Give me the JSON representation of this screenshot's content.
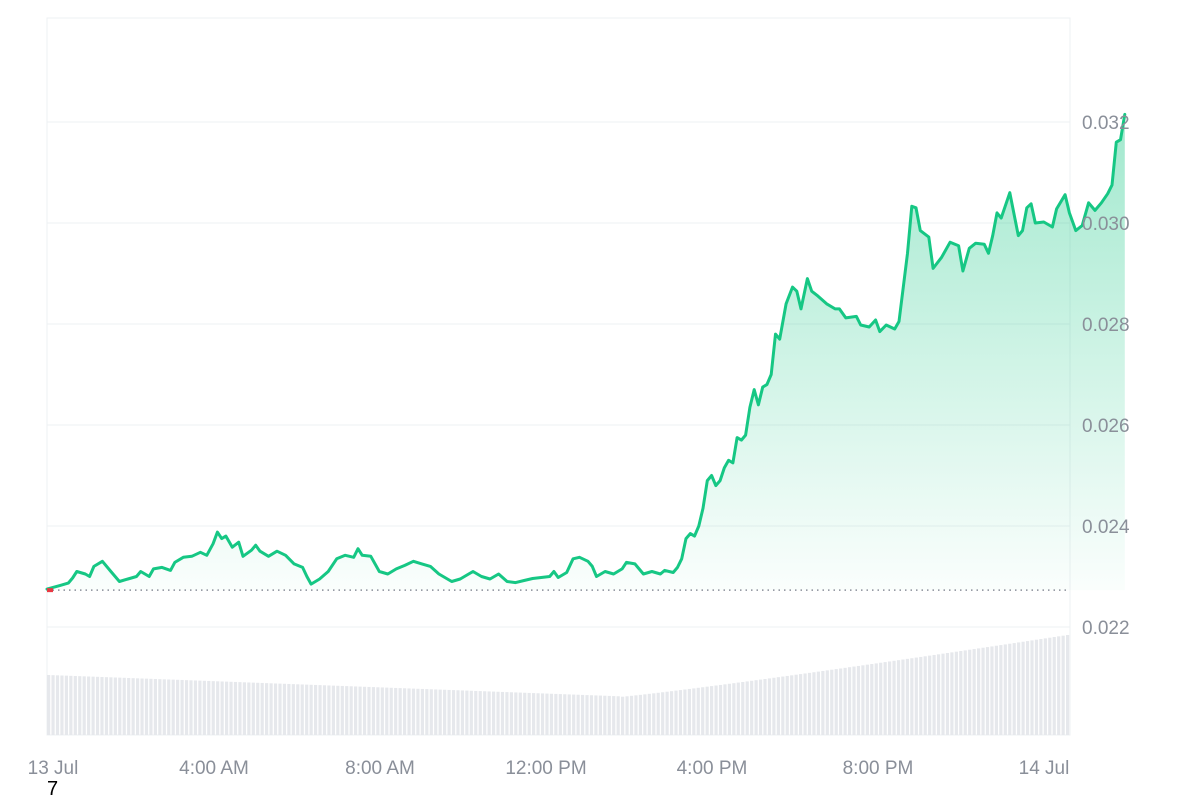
{
  "colors": {
    "line": "#16c784",
    "fill": "#16c784",
    "grid": "#eef0f3",
    "baseline": "#8a8f99",
    "volume": "#e6e8ec",
    "axis_text": "#8a8f99",
    "start_dot": "#ea3943"
  },
  "stray_label": "7",
  "chart_data": {
    "type": "area",
    "x_unit": "hours since 13 Jul 00:00",
    "y_ticks": [
      0.022,
      0.024,
      0.026,
      0.028,
      0.03,
      0.032
    ],
    "y_tick_labels": [
      "0.022",
      "0.024",
      "0.026",
      "0.028",
      "0.030",
      "0.032"
    ],
    "x_ticks": [
      0,
      4,
      8,
      12,
      16,
      20,
      24
    ],
    "x_tick_labels": [
      "13 Jul",
      "4:00 AM",
      "8:00 AM",
      "12:00 PM",
      "4:00 PM",
      "8:00 PM",
      "14 Jul"
    ],
    "ylim": [
      0.0198,
      0.034
    ],
    "xlim": [
      0,
      24
    ],
    "baseline_value": 0.02273,
    "grid": true,
    "series": [
      {
        "values": [
          [
            0.0,
            0.02275
          ],
          [
            0.3,
            0.02282
          ],
          [
            0.5,
            0.02287
          ],
          [
            0.6,
            0.02297
          ],
          [
            0.7,
            0.0231
          ],
          [
            0.9,
            0.02305
          ],
          [
            1.0,
            0.023
          ],
          [
            1.1,
            0.0232
          ],
          [
            1.3,
            0.0233
          ],
          [
            1.5,
            0.0231
          ],
          [
            1.7,
            0.0229
          ],
          [
            1.9,
            0.02295
          ],
          [
            2.1,
            0.023
          ],
          [
            2.2,
            0.0231
          ],
          [
            2.4,
            0.023
          ],
          [
            2.5,
            0.02315
          ],
          [
            2.7,
            0.02318
          ],
          [
            2.9,
            0.02312
          ],
          [
            3.0,
            0.02328
          ],
          [
            3.2,
            0.02338
          ],
          [
            3.4,
            0.0234
          ],
          [
            3.6,
            0.02348
          ],
          [
            3.75,
            0.02342
          ],
          [
            3.9,
            0.02365
          ],
          [
            4.0,
            0.02388
          ],
          [
            4.1,
            0.02375
          ],
          [
            4.2,
            0.0238
          ],
          [
            4.35,
            0.02358
          ],
          [
            4.5,
            0.02368
          ],
          [
            4.6,
            0.0234
          ],
          [
            4.8,
            0.02352
          ],
          [
            4.9,
            0.02362
          ],
          [
            5.0,
            0.0235
          ],
          [
            5.2,
            0.0234
          ],
          [
            5.4,
            0.0235
          ],
          [
            5.6,
            0.02342
          ],
          [
            5.8,
            0.02325
          ],
          [
            6.0,
            0.02318
          ],
          [
            6.1,
            0.023
          ],
          [
            6.2,
            0.02285
          ],
          [
            6.4,
            0.02295
          ],
          [
            6.6,
            0.0231
          ],
          [
            6.8,
            0.02335
          ],
          [
            7.0,
            0.02342
          ],
          [
            7.2,
            0.02338
          ],
          [
            7.3,
            0.02355
          ],
          [
            7.4,
            0.02342
          ],
          [
            7.6,
            0.0234
          ],
          [
            7.8,
            0.0231
          ],
          [
            8.0,
            0.02305
          ],
          [
            8.2,
            0.02315
          ],
          [
            8.4,
            0.02322
          ],
          [
            8.6,
            0.0233
          ],
          [
            8.8,
            0.02325
          ],
          [
            9.0,
            0.0232
          ],
          [
            9.2,
            0.02305
          ],
          [
            9.5,
            0.0229
          ],
          [
            9.7,
            0.02295
          ],
          [
            9.9,
            0.02305
          ],
          [
            10.0,
            0.0231
          ],
          [
            10.2,
            0.023
          ],
          [
            10.4,
            0.02295
          ],
          [
            10.6,
            0.02305
          ],
          [
            10.8,
            0.0229
          ],
          [
            11.0,
            0.02288
          ],
          [
            11.2,
            0.02292
          ],
          [
            11.4,
            0.02296
          ],
          [
            11.6,
            0.02298
          ],
          [
            11.8,
            0.023
          ],
          [
            11.9,
            0.0231
          ],
          [
            12.0,
            0.02298
          ],
          [
            12.2,
            0.02308
          ],
          [
            12.35,
            0.02335
          ],
          [
            12.5,
            0.02338
          ],
          [
            12.7,
            0.0233
          ],
          [
            12.8,
            0.0232
          ],
          [
            12.9,
            0.023
          ],
          [
            13.1,
            0.0231
          ],
          [
            13.3,
            0.02305
          ],
          [
            13.5,
            0.02315
          ],
          [
            13.6,
            0.02328
          ],
          [
            13.8,
            0.02325
          ],
          [
            13.9,
            0.02315
          ],
          [
            14.0,
            0.02305
          ],
          [
            14.2,
            0.0231
          ],
          [
            14.4,
            0.02305
          ],
          [
            14.5,
            0.02312
          ],
          [
            14.7,
            0.02308
          ],
          [
            14.8,
            0.02318
          ],
          [
            14.9,
            0.02335
          ],
          [
            15.0,
            0.02375
          ],
          [
            15.1,
            0.02385
          ],
          [
            15.2,
            0.0238
          ],
          [
            15.3,
            0.024
          ],
          [
            15.4,
            0.02435
          ],
          [
            15.5,
            0.0249
          ],
          [
            15.6,
            0.025
          ],
          [
            15.7,
            0.0248
          ],
          [
            15.8,
            0.0249
          ],
          [
            15.9,
            0.02515
          ],
          [
            16.0,
            0.0253
          ],
          [
            16.1,
            0.02525
          ],
          [
            16.2,
            0.02575
          ],
          [
            16.3,
            0.0257
          ],
          [
            16.4,
            0.0258
          ],
          [
            16.5,
            0.02635
          ],
          [
            16.6,
            0.0267
          ],
          [
            16.7,
            0.0264
          ],
          [
            16.8,
            0.02675
          ],
          [
            16.9,
            0.0268
          ],
          [
            17.0,
            0.027
          ],
          [
            17.1,
            0.0278
          ],
          [
            17.2,
            0.0277
          ],
          [
            17.35,
            0.0284
          ],
          [
            17.5,
            0.02873
          ],
          [
            17.6,
            0.02865
          ],
          [
            17.7,
            0.0283
          ],
          [
            17.85,
            0.0289
          ],
          [
            17.95,
            0.02865
          ],
          [
            18.1,
            0.02855
          ],
          [
            18.3,
            0.0284
          ],
          [
            18.5,
            0.0283
          ],
          [
            18.6,
            0.0283
          ],
          [
            18.75,
            0.02812
          ],
          [
            19.0,
            0.02815
          ],
          [
            19.1,
            0.02798
          ],
          [
            19.3,
            0.02794
          ],
          [
            19.45,
            0.02808
          ],
          [
            19.55,
            0.02785
          ],
          [
            19.7,
            0.02798
          ],
          [
            19.9,
            0.0279
          ],
          [
            20.0,
            0.02805
          ],
          [
            20.2,
            0.0294
          ],
          [
            20.3,
            0.03033
          ],
          [
            20.4,
            0.0303
          ],
          [
            20.5,
            0.02985
          ],
          [
            20.7,
            0.02972
          ],
          [
            20.8,
            0.0291
          ],
          [
            21.0,
            0.02932
          ],
          [
            21.2,
            0.02962
          ],
          [
            21.4,
            0.02955
          ],
          [
            21.5,
            0.02905
          ],
          [
            21.65,
            0.0295
          ],
          [
            21.8,
            0.0296
          ],
          [
            22.0,
            0.02958
          ],
          [
            22.1,
            0.0294
          ],
          [
            22.2,
            0.02975
          ],
          [
            22.3,
            0.0302
          ],
          [
            22.4,
            0.0301
          ],
          [
            22.6,
            0.0306
          ],
          [
            22.8,
            0.02975
          ],
          [
            22.9,
            0.02985
          ],
          [
            23.0,
            0.0303
          ],
          [
            23.1,
            0.03038
          ],
          [
            23.2,
            0.03
          ],
          [
            23.4,
            0.03002
          ],
          [
            23.6,
            0.02992
          ],
          [
            23.7,
            0.03028
          ],
          [
            23.9,
            0.03056
          ],
          [
            24.0,
            0.0302
          ],
          [
            24.15,
            0.02985
          ],
          [
            24.3,
            0.02995
          ],
          [
            24.45,
            0.0304
          ],
          [
            24.6,
            0.03025
          ],
          [
            24.75,
            0.0304
          ],
          [
            24.9,
            0.03058
          ],
          [
            25.0,
            0.03075
          ],
          [
            25.1,
            0.0316
          ],
          [
            25.2,
            0.03165
          ],
          [
            25.3,
            0.03215
          ]
        ]
      }
    ]
  }
}
